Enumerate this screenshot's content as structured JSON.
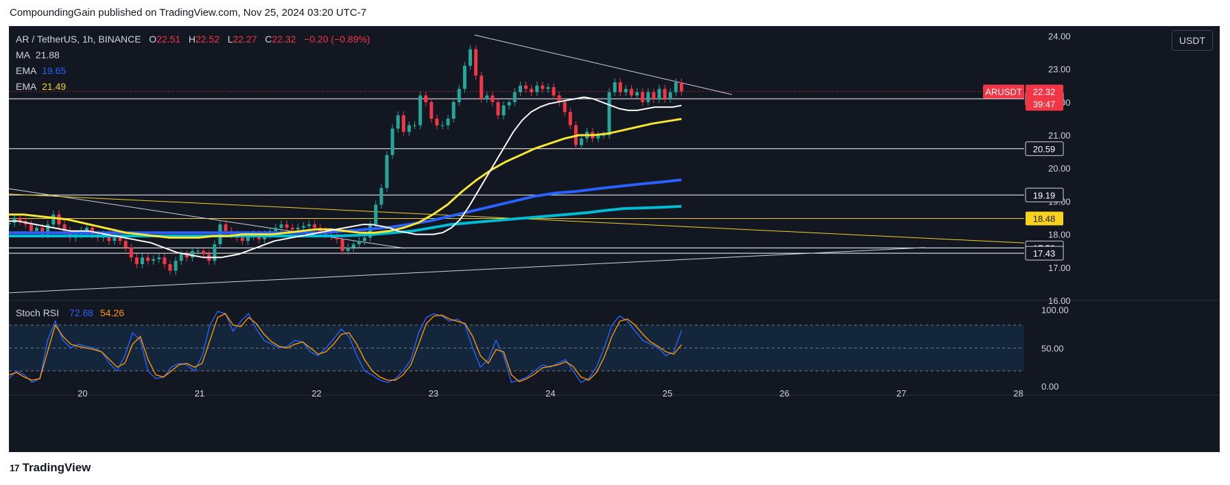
{
  "header": {
    "attribution": "CompoundingGain published on TradingView.com, Nov 25, 2024 03:20 UTC-7"
  },
  "footer": {
    "brand": "TradingView",
    "logo_text": "17"
  },
  "legend": {
    "symbol": "AR / TetherUS, 1h, BINANCE",
    "o_label": "O",
    "o_value": "22.51",
    "h_label": "H",
    "h_value": "22.52",
    "l_label": "L",
    "l_value": "22.27",
    "c_label": "C",
    "c_value": "22.32",
    "change": "−0.20 (−0.89%)",
    "ma_label": "MA",
    "ma_value": "21.88",
    "ema1_label": "EMA",
    "ema1_value": "19.65",
    "ema2_label": "EMA",
    "ema2_value": "21.49"
  },
  "currency_button": "USDT",
  "colors": {
    "background": "#131722",
    "up": "#26a69a",
    "down": "#f23645",
    "ma": "#ffffff",
    "ema_fast": "#f7e733",
    "ema_slow": "#2962ff",
    "ema_cyan": "#00bcd4",
    "rsi_k": "#2962ff",
    "rsi_d": "#ff9800"
  },
  "chart_data": {
    "type": "candlestick",
    "symbol_label": "ARUSDT",
    "last_price": "22.32",
    "countdown": "39:47",
    "y_ticks": [
      "24.00",
      "23.00",
      "22.00",
      "21.00",
      "20.00",
      "19.00",
      "18.00",
      "17.00",
      "16.00"
    ],
    "ylim": [
      16.0,
      24.3
    ],
    "x_ticks": [
      "20",
      "21",
      "22",
      "23",
      "24",
      "25",
      "26",
      "27",
      "28"
    ],
    "x_tick_values": [
      20,
      21,
      22,
      23,
      24,
      25,
      26,
      27,
      28
    ],
    "xlim": [
      19.37,
      28.05
    ],
    "horizontal_levels": [
      {
        "label": "22.10",
        "value": 22.1,
        "color": "#ffffff"
      },
      {
        "label": "20.59",
        "value": 20.59,
        "color": "#ffffff"
      },
      {
        "label": "19.19",
        "value": 19.19,
        "color": "#ffffff"
      },
      {
        "label": "18.48",
        "value": 18.48,
        "color": "#f7d31f"
      },
      {
        "label": "17.59",
        "value": 17.59,
        "color": "#ffffff"
      },
      {
        "label": "17.43",
        "value": 17.43,
        "color": "#ffffff"
      }
    ],
    "trendlines": [
      {
        "color": "#d1d4dc",
        "points": [
          [
            23.35,
            24.03
          ],
          [
            25.55,
            22.23
          ]
        ]
      },
      {
        "color": "#d1d4dc",
        "points": [
          [
            19.37,
            19.38
          ],
          [
            22.75,
            17.58
          ]
        ]
      },
      {
        "color": "#d1d4dc",
        "points": [
          [
            19.37,
            16.23
          ],
          [
            27.2,
            17.6
          ]
        ]
      },
      {
        "color": "#f7d31f",
        "points": [
          [
            19.37,
            19.22
          ],
          [
            28.05,
            17.74
          ]
        ]
      }
    ],
    "candles_close": [
      18.35,
      18.5,
      18.4,
      18.3,
      18.1,
      18.2,
      18.0,
      18.3,
      18.6,
      18.3,
      18.1,
      17.9,
      18.0,
      18.1,
      18.2,
      18.0,
      17.9,
      18.0,
      17.8,
      17.9,
      17.8,
      17.6,
      17.3,
      17.1,
      17.3,
      17.2,
      17.25,
      17.3,
      17.1,
      16.9,
      17.2,
      17.4,
      17.3,
      17.5,
      17.5,
      17.4,
      17.2,
      17.7,
      18.3,
      18.1,
      18.0,
      17.9,
      17.8,
      17.95,
      18.0,
      17.85,
      18.0,
      18.1,
      18.2,
      18.3,
      18.2,
      18.15,
      18.2,
      18.25,
      18.3,
      18.2,
      18.1,
      18.0,
      17.95,
      17.85,
      17.5,
      17.6,
      17.7,
      17.8,
      17.9,
      18.3,
      18.9,
      19.4,
      20.4,
      21.2,
      21.6,
      21.1,
      21.3,
      21.3,
      22.2,
      22.0,
      21.5,
      21.3,
      21.3,
      21.5,
      22.0,
      22.4,
      23.1,
      23.6,
      22.8,
      22.1,
      22.2,
      22.0,
      21.6,
      21.9,
      22.0,
      22.3,
      22.5,
      22.4,
      22.3,
      22.5,
      22.4,
      22.45,
      22.2,
      22.0,
      21.7,
      21.3,
      20.7,
      20.9,
      21.1,
      20.9,
      21.0,
      21.0,
      22.3,
      22.6,
      22.3,
      22.4,
      22.2,
      22.3,
      22.0,
      22.3,
      22.1,
      22.4,
      22.1,
      22.3,
      22.6,
      22.32
    ],
    "ma": [
      18.4,
      18.4,
      18.35,
      18.3,
      18.25,
      18.2,
      18.15,
      18.1,
      18.1,
      18.1,
      18.05,
      18.0,
      17.95,
      17.9,
      17.85,
      17.8,
      17.75,
      17.65,
      17.55,
      17.45,
      17.4,
      17.35,
      17.3,
      17.3,
      17.3,
      17.35,
      17.4,
      17.5,
      17.6,
      17.7,
      17.8,
      17.85,
      17.9,
      17.95,
      18.0,
      18.05,
      18.1,
      18.15,
      18.2,
      18.25,
      18.3,
      18.3,
      18.25,
      18.2,
      18.1,
      18.05,
      18.0,
      18.0,
      18.0,
      18.05,
      18.2,
      18.45,
      18.85,
      19.3,
      19.75,
      20.2,
      20.65,
      21.1,
      21.45,
      21.7,
      21.85,
      21.95,
      22.0,
      22.05,
      22.1,
      22.15,
      22.1,
      22.0,
      21.9,
      21.8,
      21.75,
      21.75,
      21.8,
      21.85,
      21.85,
      21.85,
      21.9
    ],
    "ema_fast": [
      18.6,
      18.6,
      18.55,
      18.5,
      18.45,
      18.35,
      18.25,
      18.15,
      18.05,
      18.0,
      17.95,
      17.9,
      17.9,
      17.9,
      17.95,
      17.95,
      18.0,
      18.0,
      18.0,
      18.05,
      18.1,
      18.15,
      18.15,
      18.1,
      18.05,
      18.05,
      18.1,
      18.2,
      18.35,
      18.6,
      18.9,
      19.3,
      19.65,
      19.95,
      20.2,
      20.4,
      20.6,
      20.75,
      20.9,
      21.0,
      21.0,
      21.05,
      21.15,
      21.25,
      21.35,
      21.42,
      21.49
    ],
    "ema_slow": [
      18.05,
      18.05,
      18.05,
      18.05,
      18.05,
      18.05,
      18.05,
      18.05,
      18.05,
      18.05,
      18.05,
      18.05,
      18.05,
      18.05,
      18.05,
      18.05,
      18.1,
      18.15,
      18.2,
      18.3,
      18.4,
      18.55,
      18.7,
      18.85,
      19.0,
      19.15,
      19.25,
      19.3,
      19.38,
      19.45,
      19.52,
      19.58,
      19.65
    ],
    "ema_cyan": [
      17.95,
      17.95,
      17.95,
      17.95,
      17.95,
      17.95,
      17.95,
      17.95,
      17.95,
      17.95,
      17.95,
      17.95,
      17.95,
      17.95,
      17.95,
      17.95,
      17.95,
      17.95,
      17.97,
      18.0,
      18.05,
      18.1,
      18.2,
      18.3,
      18.35,
      18.4,
      18.45,
      18.5,
      18.55,
      18.6,
      18.65,
      18.72,
      18.78,
      18.8,
      18.82,
      18.85
    ],
    "stoch_rsi": {
      "label": "Stoch RSI",
      "k_value": "72.68",
      "d_value": "54.26",
      "y_ticks": [
        "100.00",
        "50.00",
        "0.00"
      ],
      "ylim": [
        -8,
        105
      ],
      "upper_band": 80,
      "lower_band": 20,
      "k": [
        10,
        20,
        15,
        5,
        10,
        60,
        85,
        60,
        50,
        55,
        52,
        50,
        45,
        30,
        20,
        40,
        70,
        60,
        20,
        10,
        12,
        25,
        30,
        28,
        20,
        40,
        80,
        98,
        95,
        72,
        85,
        95,
        75,
        60,
        55,
        50,
        52,
        60,
        58,
        45,
        40,
        50,
        62,
        75,
        65,
        40,
        20,
        15,
        8,
        5,
        10,
        20,
        35,
        70,
        90,
        95,
        92,
        85,
        88,
        80,
        50,
        25,
        35,
        60,
        40,
        5,
        8,
        12,
        20,
        28,
        25,
        30,
        35,
        20,
        5,
        10,
        25,
        50,
        80,
        92,
        85,
        72,
        60,
        55,
        50,
        40,
        45,
        72.68
      ],
      "d": [
        15,
        18,
        12,
        8,
        10,
        45,
        80,
        65,
        55,
        52,
        50,
        48,
        45,
        35,
        25,
        30,
        55,
        65,
        35,
        15,
        12,
        20,
        28,
        30,
        25,
        30,
        60,
        90,
        95,
        80,
        78,
        90,
        82,
        68,
        58,
        52,
        50,
        55,
        58,
        50,
        42,
        45,
        55,
        68,
        70,
        55,
        35,
        20,
        12,
        8,
        8,
        15,
        28,
        55,
        82,
        92,
        93,
        88,
        85,
        82,
        65,
        40,
        30,
        48,
        45,
        15,
        6,
        10,
        16,
        24,
        26,
        28,
        32,
        26,
        12,
        8,
        18,
        38,
        65,
        85,
        88,
        80,
        68,
        58,
        52,
        45,
        42,
        54.26
      ]
    }
  }
}
